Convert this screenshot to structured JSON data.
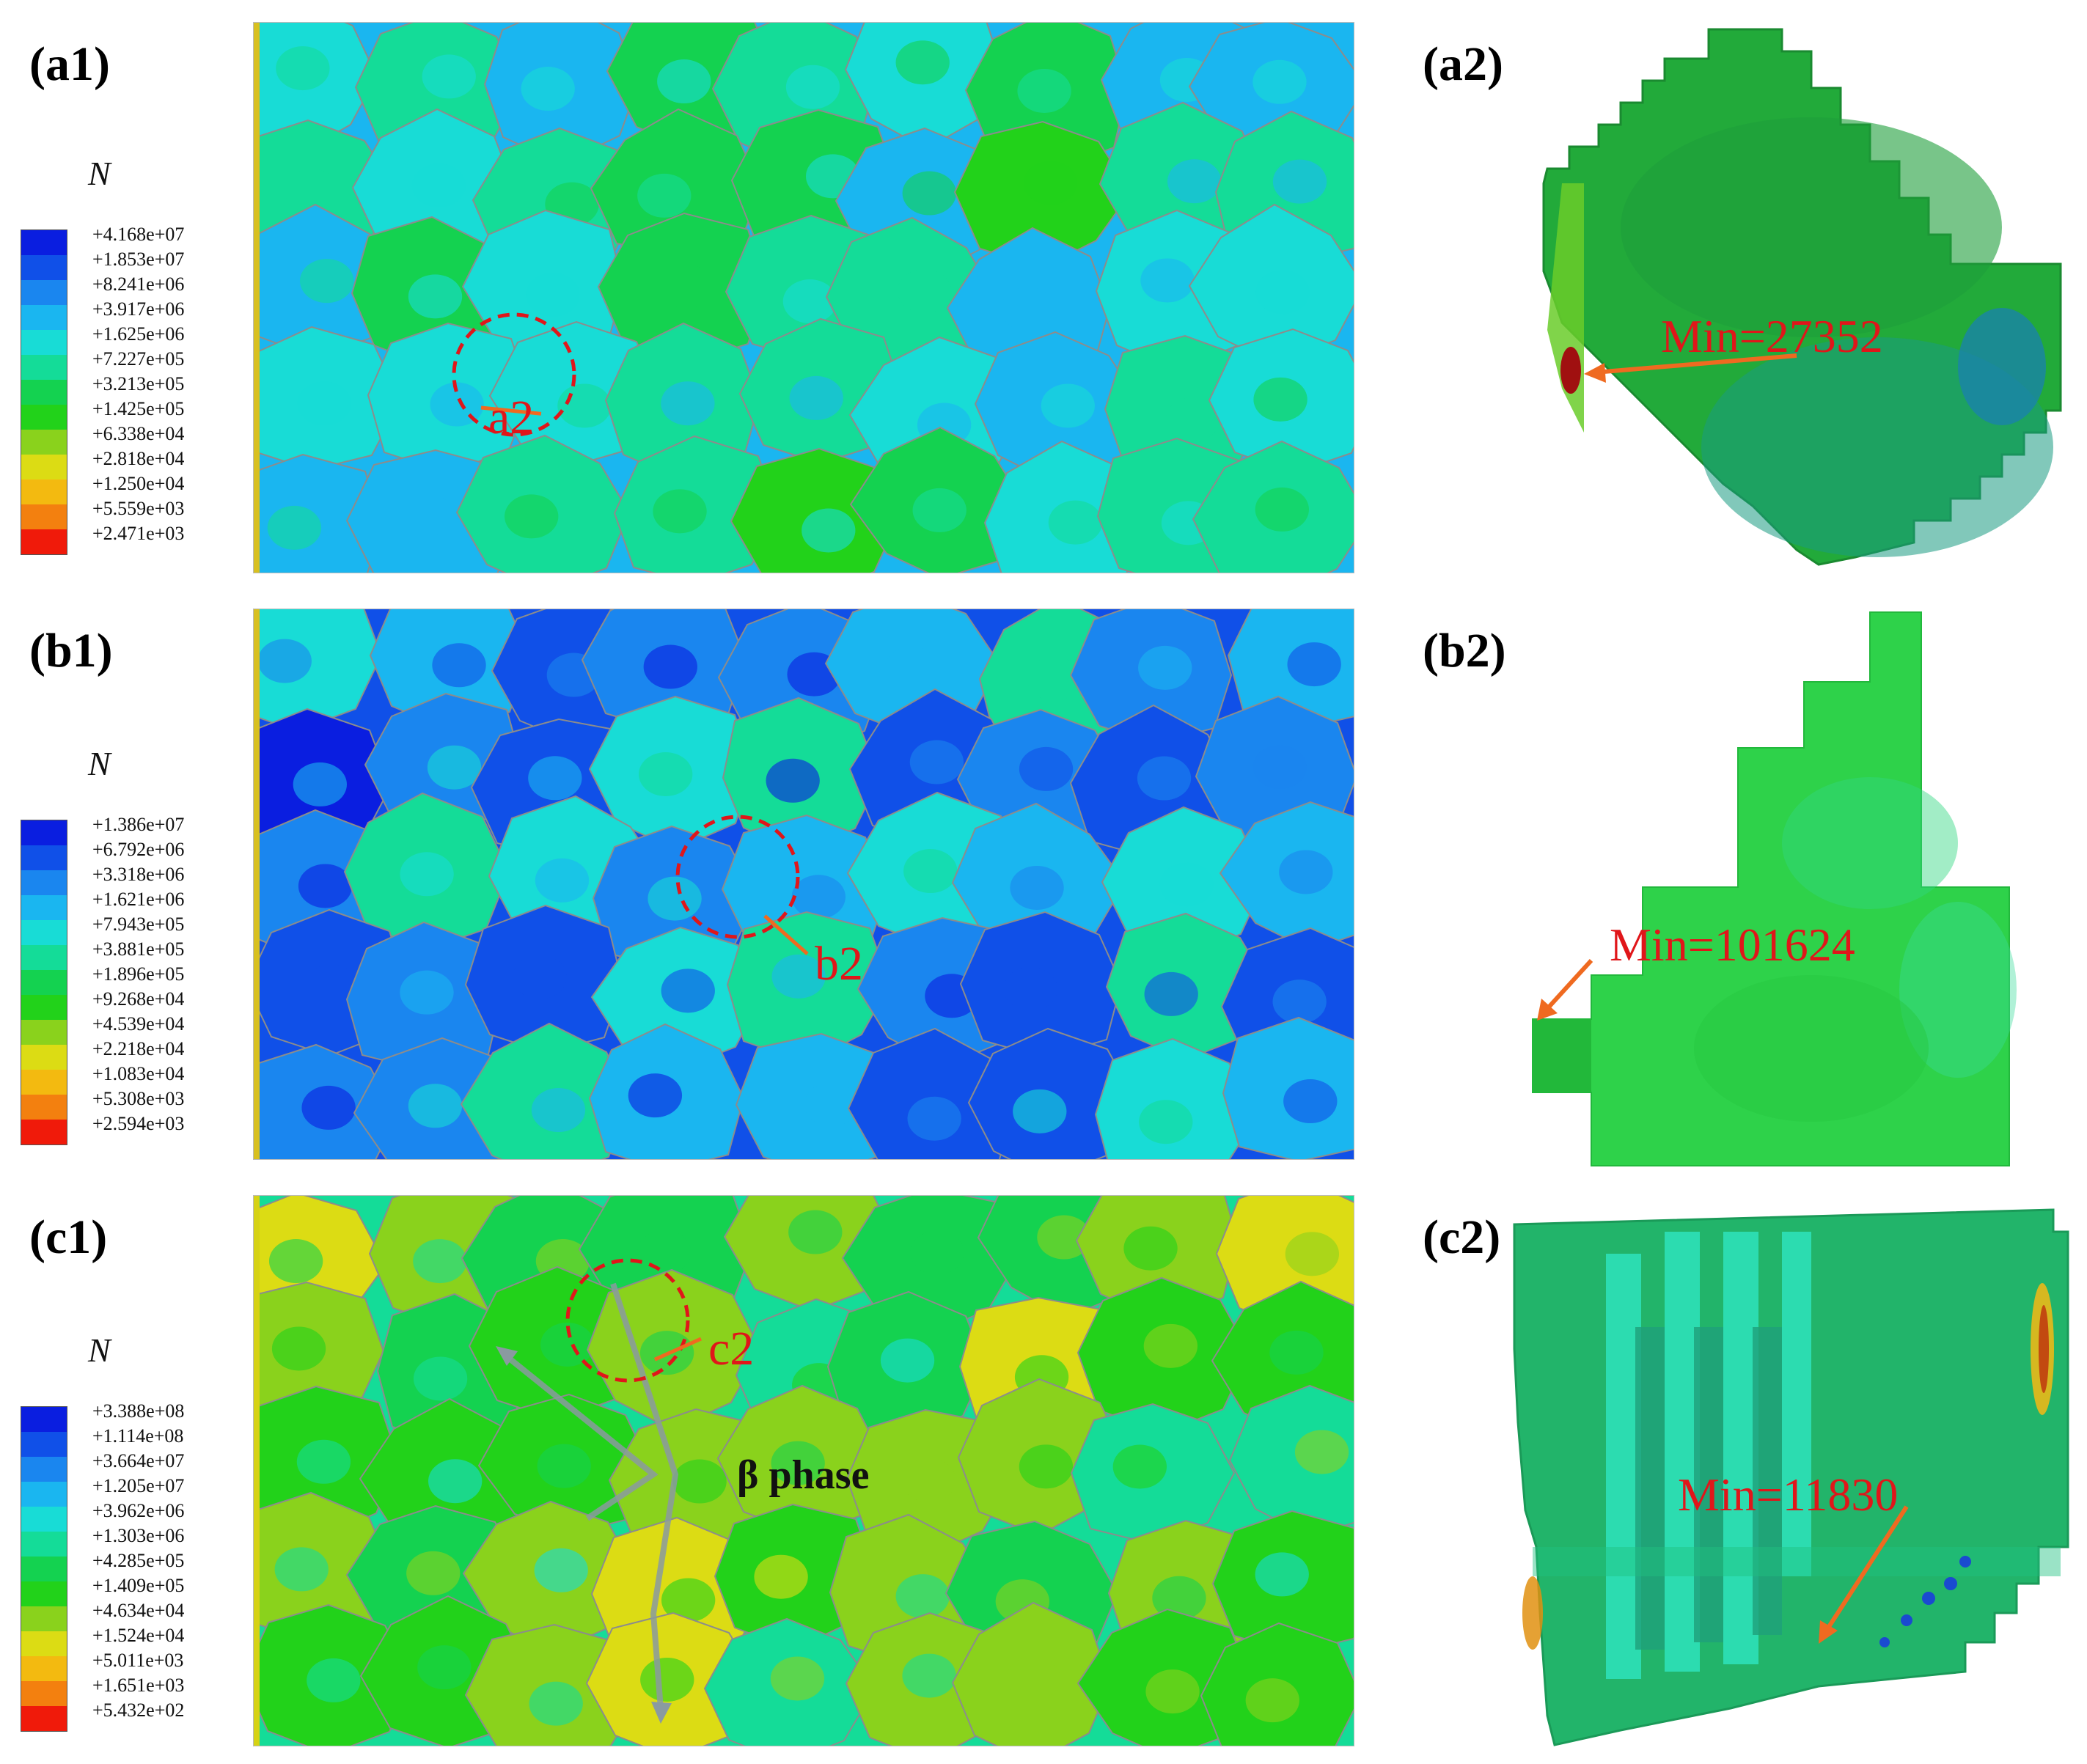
{
  "colors": {
    "scale": [
      "#0a1ee0",
      "#1050e8",
      "#1a86ef",
      "#1ab6f0",
      "#18dcd6",
      "#14dc98",
      "#14d250",
      "#22d21a",
      "#8ad21c",
      "#dcdc14",
      "#f3ba10",
      "#f3800f",
      "#f01a0a"
    ],
    "annotation_red": "#e0161a",
    "arrow_orange": "#ef6a20",
    "beta_arrow": "#8a9aa0",
    "grain_boundary": "#8c8c8c"
  },
  "legends": [
    {
      "symbol": "N",
      "values": [
        "+4.168e+07",
        "+1.853e+07",
        "+8.241e+06",
        "+3.917e+06",
        "+1.625e+06",
        "+7.227e+05",
        "+3.213e+05",
        "+1.425e+05",
        "+6.338e+04",
        "+2.818e+04",
        "+1.250e+04",
        "+5.559e+03",
        "+2.471e+03"
      ]
    },
    {
      "symbol": "N",
      "values": [
        "+1.386e+07",
        "+6.792e+06",
        "+3.318e+06",
        "+1.621e+06",
        "+7.943e+05",
        "+3.881e+05",
        "+1.896e+05",
        "+9.268e+04",
        "+4.539e+04",
        "+2.218e+04",
        "+1.083e+04",
        "+5.308e+03",
        "+2.594e+03"
      ]
    },
    {
      "symbol": "N",
      "values": [
        "+3.388e+08",
        "+1.114e+08",
        "+3.664e+07",
        "+1.205e+07",
        "+3.962e+06",
        "+1.303e+06",
        "+4.285e+05",
        "+1.409e+05",
        "+4.634e+04",
        "+1.524e+04",
        "+5.011e+03",
        "+1.651e+03",
        "+5.432e+02"
      ]
    }
  ],
  "panels": {
    "a1": {
      "label": "(a1)",
      "callout": "a2"
    },
    "a2": {
      "label": "(a2)",
      "min_text": "Min=27352"
    },
    "b1": {
      "label": "(b1)",
      "callout": "b2"
    },
    "b2": {
      "label": "(b2)",
      "min_text": "Min=101624"
    },
    "c1": {
      "label": "(c1)",
      "callout": "c2",
      "phase_label": "β phase"
    },
    "c2": {
      "label": "(c2)",
      "min_text": "Min=11830"
    }
  }
}
